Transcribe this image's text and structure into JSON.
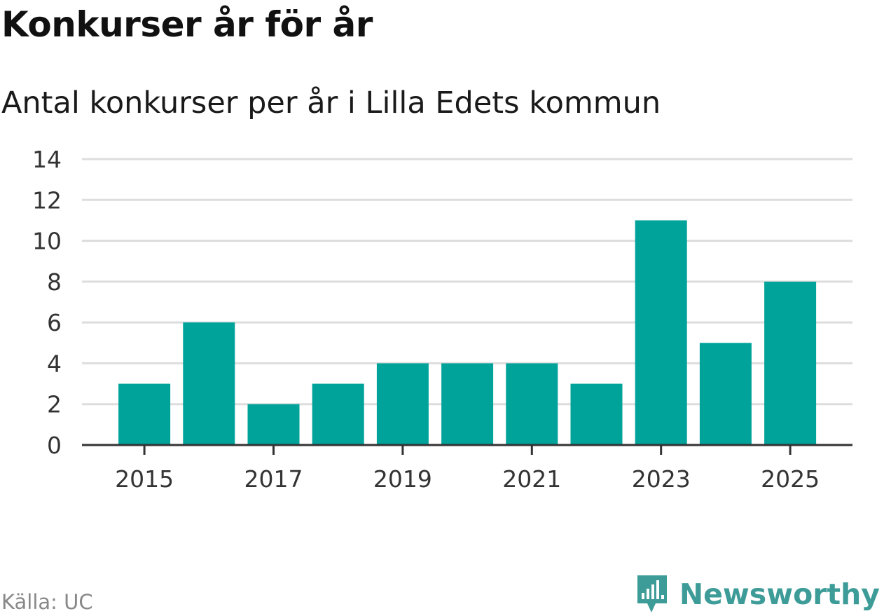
{
  "chart_data": {
    "type": "bar",
    "title": "Konkurser år för år",
    "subtitle": "Antal konkurser per år i Lilla Edets kommun",
    "categories": [
      "2015",
      "2016",
      "2017",
      "2018",
      "2019",
      "2020",
      "2021",
      "2022",
      "2023",
      "2024",
      "2025"
    ],
    "values": [
      3,
      6,
      2,
      3,
      4,
      4,
      4,
      3,
      11,
      5,
      8
    ],
    "x_tick_labels": [
      "2015",
      "2017",
      "2019",
      "2021",
      "2023",
      "2025"
    ],
    "y_ticks": [
      0,
      2,
      4,
      6,
      8,
      10,
      12,
      14
    ],
    "ylim": [
      0,
      14
    ],
    "grid": true,
    "bar_color": "#00a39a",
    "grid_color": "#dddddd",
    "axis_color": "#333333"
  },
  "footer": {
    "source": "Källa: UC",
    "brand": "Newsworthy",
    "brand_color": "#3d9c98",
    "brand_icon": "newsworthy-logo-icon"
  }
}
